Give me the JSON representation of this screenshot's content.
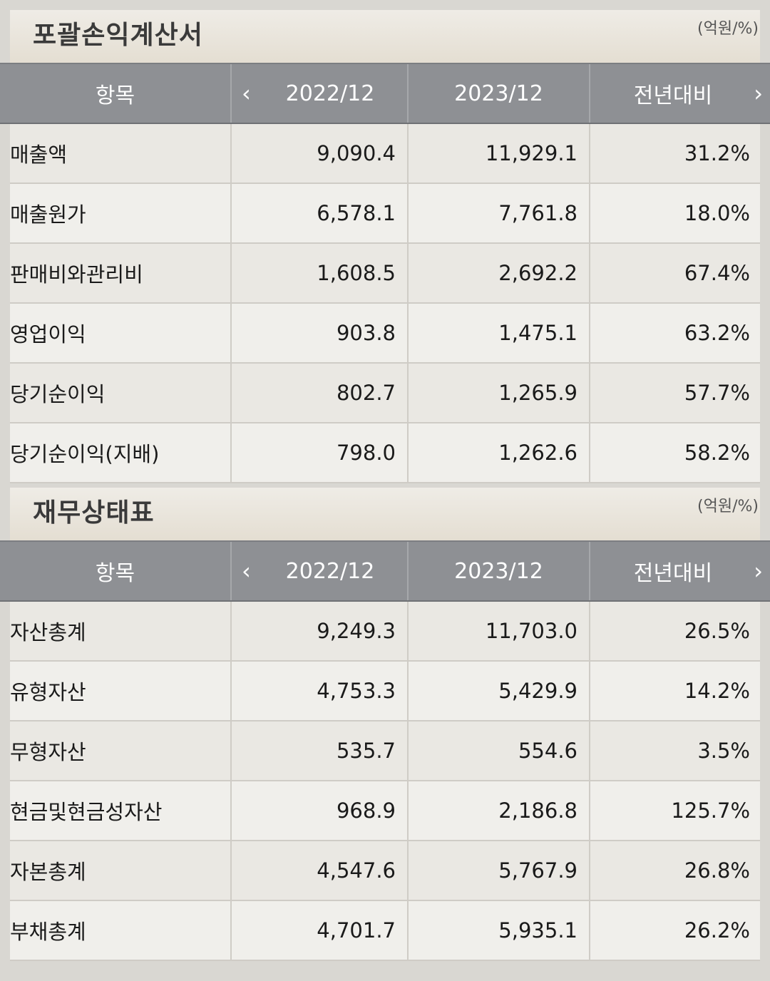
{
  "income": {
    "title": "포괄손익계산서",
    "unit": "(억원/%)",
    "headers": {
      "item": "항목",
      "col1": "2022/12",
      "col2": "2023/12",
      "col3": "전년대비"
    },
    "rows": [
      {
        "label": "매출액",
        "v1": "9,090.4",
        "v2": "11,929.1",
        "yoy": "31.2%"
      },
      {
        "label": "매출원가",
        "v1": "6,578.1",
        "v2": "7,761.8",
        "yoy": "18.0%"
      },
      {
        "label": "판매비와관리비",
        "v1": "1,608.5",
        "v2": "2,692.2",
        "yoy": "67.4%"
      },
      {
        "label": "영업이익",
        "v1": "903.8",
        "v2": "1,475.1",
        "yoy": "63.2%"
      },
      {
        "label": "당기순이익",
        "v1": "802.7",
        "v2": "1,265.9",
        "yoy": "57.7%"
      },
      {
        "label": "당기순이익(지배)",
        "v1": "798.0",
        "v2": "1,262.6",
        "yoy": "58.2%"
      }
    ]
  },
  "balance": {
    "title": "재무상태표",
    "unit": "(억원/%)",
    "headers": {
      "item": "항목",
      "col1": "2022/12",
      "col2": "2023/12",
      "col3": "전년대비"
    },
    "rows": [
      {
        "label": "자산총계",
        "v1": "9,249.3",
        "v2": "11,703.0",
        "yoy": "26.5%"
      },
      {
        "label": "유형자산",
        "v1": "4,753.3",
        "v2": "5,429.9",
        "yoy": "14.2%"
      },
      {
        "label": "무형자산",
        "v1": "535.7",
        "v2": "554.6",
        "yoy": "3.5%"
      },
      {
        "label": "현금및현금성자산",
        "v1": "968.9",
        "v2": "2,186.8",
        "yoy": "125.7%"
      },
      {
        "label": "자본총계",
        "v1": "4,547.6",
        "v2": "5,767.9",
        "yoy": "26.8%"
      },
      {
        "label": "부채총계",
        "v1": "4,701.7",
        "v2": "5,935.1",
        "yoy": "26.2%"
      }
    ]
  },
  "icons": {
    "prev": "chevron-left-icon",
    "next": "chevron-right-icon"
  }
}
